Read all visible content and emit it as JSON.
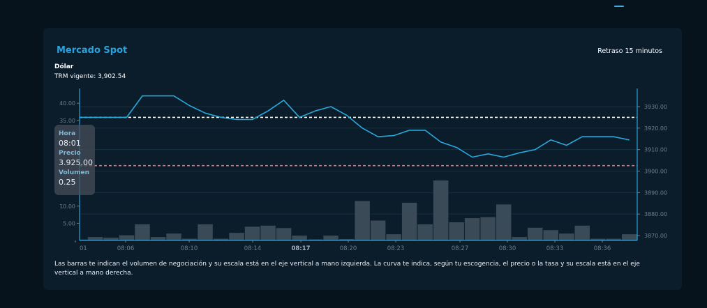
{
  "header": {
    "indicator_color": "#3fb0e0"
  },
  "card": {
    "title": "Mercado Spot",
    "delay_label": "Retraso 15 minutos",
    "asset": "Dólar",
    "trm_label": "TRM vigente: 3,902.54",
    "footnote": "Las barras te indican el volumen de negociación y su escala está en el eje vertical a mano izquierda. La curva te indica, según tu escogencia, el precio o la tasa y su escala está en el eje vertical a mano derecha."
  },
  "tooltip": {
    "hora_label": "Hora",
    "hora_value": "08:01",
    "precio_label": "Precio",
    "precio_value": "3.925.00",
    "volumen_label": "Volumen",
    "volumen_value": "0.25"
  },
  "colors": {
    "line": "#29a8dc",
    "bars": "#3a4a56",
    "axis": "#2aa3dc",
    "grid": "#15303f",
    "open_ref_line": "#ffffff",
    "trm_ref_line": "#e0707a",
    "tick_text": "#6e7f8c"
  },
  "chart_data": {
    "type": "bar+line",
    "title": "Mercado Spot",
    "x_tick_labels": [
      "08:01",
      "08:06",
      "08:10",
      "08:14",
      "08:17",
      "08:20",
      "08:23",
      "08:27",
      "08:30",
      "08:33",
      "08:36"
    ],
    "left_axis": {
      "label": "Volumen",
      "ticks": [
        "5.00",
        "10.00",
        "35.00",
        "40.00"
      ],
      "range": [
        0,
        44
      ]
    },
    "right_axis": {
      "label": "Precio",
      "ticks": [
        "3870.00",
        "3880.00",
        "3890.00",
        "3900.00",
        "3910.00",
        "3920.00",
        "3930.00"
      ],
      "range": [
        3866,
        3937
      ]
    },
    "reference_lines": [
      {
        "name": "open",
        "value": 3925.0,
        "style": "dashed",
        "color": "#ffffff"
      },
      {
        "name": "TRM",
        "value": 3902.54,
        "style": "dashed",
        "color": "#e0707a"
      }
    ],
    "series": [
      {
        "name": "Volumen",
        "type": "bar",
        "axis": "left",
        "values": [
          0.25,
          1.0,
          0.8,
          1.5,
          4.7,
          1.0,
          2.0,
          0.5,
          4.7,
          0.5,
          2.2,
          4.0,
          4.3,
          3.6,
          1.4,
          0.3,
          1.4,
          0.4,
          11.5,
          5.8,
          1.8,
          11.0,
          4.7,
          17.5,
          5.3,
          6.5,
          6.8,
          10.5,
          1.0,
          3.7,
          3.0,
          2.0,
          4.3,
          0.5,
          0.5,
          1.8
        ]
      },
      {
        "name": "Precio",
        "type": "line",
        "axis": "right",
        "values": [
          3925.0,
          3925.0,
          3925.0,
          3925.0,
          3935.0,
          3935.0,
          3935.0,
          3930.5,
          3927.0,
          3925.0,
          3924.0,
          3924.0,
          3928.0,
          3933.0,
          3925.0,
          3928.0,
          3930.0,
          3926.0,
          3920.0,
          3916.0,
          3916.5,
          3919.0,
          3919.0,
          3913.5,
          3911.0,
          3906.5,
          3908.0,
          3906.5,
          3908.5,
          3910.0,
          3914.5,
          3912.0,
          3916.0,
          3916.0,
          3916.0,
          3914.5
        ]
      }
    ]
  }
}
